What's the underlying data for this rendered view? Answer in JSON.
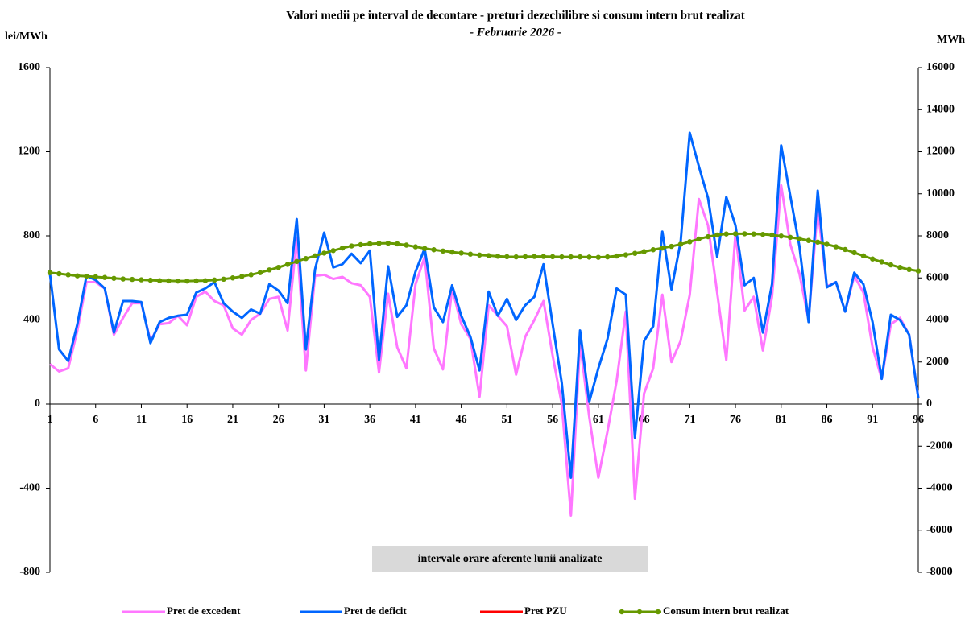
{
  "chart_data": {
    "type": "line",
    "title": "Valori medii pe interval de decontare - preturi dezechilibre si consum intern brut realizat",
    "subtitle": "- Februarie 2026 -",
    "ylabel": "lei/MWh",
    "y2label": "MWh",
    "annotation": "intervale orare aferente lunii analizate",
    "legend": "bottom",
    "x": [
      1,
      2,
      3,
      4,
      5,
      6,
      7,
      8,
      9,
      10,
      11,
      12,
      13,
      14,
      15,
      16,
      17,
      18,
      19,
      20,
      21,
      22,
      23,
      24,
      25,
      26,
      27,
      28,
      29,
      30,
      31,
      32,
      33,
      34,
      35,
      36,
      37,
      38,
      39,
      40,
      41,
      42,
      43,
      44,
      45,
      46,
      47,
      48,
      49,
      50,
      51,
      52,
      53,
      54,
      55,
      56,
      57,
      58,
      59,
      60,
      61,
      62,
      63,
      64,
      65,
      66,
      67,
      68,
      69,
      70,
      71,
      72,
      73,
      74,
      75,
      76,
      77,
      78,
      79,
      80,
      81,
      82,
      83,
      84,
      85,
      86,
      87,
      88,
      89,
      90,
      91,
      92,
      93,
      94,
      95,
      96
    ],
    "xlim": [
      1,
      96
    ],
    "xticks": [
      1,
      6,
      11,
      16,
      21,
      26,
      31,
      36,
      41,
      46,
      51,
      56,
      61,
      66,
      71,
      76,
      81,
      86,
      91,
      96
    ],
    "ylim": [
      -800,
      1600
    ],
    "yticks": [
      -800,
      -400,
      0,
      400,
      800,
      1200,
      1600
    ],
    "y2lim": [
      -8000,
      16000
    ],
    "y2ticks": [
      -8000,
      -6000,
      -4000,
      -2000,
      0,
      2000,
      4000,
      6000,
      8000,
      10000,
      12000,
      14000,
      16000
    ],
    "series": [
      {
        "name": "Pret de excedent",
        "color": "#ff77ff",
        "values": [
          190,
          155,
          170,
          350,
          580,
          580,
          550,
          330,
          410,
          480,
          480,
          300,
          380,
          385,
          420,
          375,
          510,
          535,
          490,
          470,
          360,
          330,
          400,
          430,
          500,
          510,
          350,
          790,
          160,
          610,
          615,
          595,
          605,
          575,
          565,
          510,
          150,
          525,
          270,
          170,
          570,
          700,
          265,
          165,
          550,
          380,
          310,
          35,
          470,
          420,
          370,
          140,
          320,
          400,
          490,
          230,
          0,
          -530,
          290,
          -60,
          -350,
          -130,
          110,
          440,
          -450,
          50,
          170,
          520,
          200,
          300,
          520,
          975,
          850,
          530,
          210,
          810,
          445,
          510,
          255,
          510,
          1040,
          760,
          620,
          400,
          930,
          560,
          580,
          440,
          610,
          530,
          270,
          120,
          380,
          410,
          330,
          30
        ]
      },
      {
        "name": "Pret de deficit",
        "color": "#0066ff",
        "values": [
          620,
          260,
          205,
          380,
          610,
          590,
          550,
          340,
          490,
          490,
          485,
          290,
          390,
          410,
          420,
          425,
          530,
          550,
          580,
          480,
          440,
          410,
          450,
          430,
          570,
          540,
          480,
          880,
          260,
          640,
          815,
          650,
          665,
          715,
          670,
          730,
          210,
          655,
          415,
          470,
          630,
          740,
          460,
          390,
          565,
          420,
          320,
          160,
          535,
          420,
          500,
          400,
          470,
          510,
          665,
          380,
          100,
          -350,
          350,
          10,
          170,
          310,
          550,
          520,
          -160,
          300,
          370,
          820,
          545,
          770,
          1290,
          1130,
          980,
          700,
          985,
          850,
          565,
          600,
          340,
          570,
          1230,
          990,
          750,
          390,
          1015,
          555,
          580,
          440,
          625,
          570,
          390,
          120,
          425,
          400,
          330,
          30
        ]
      },
      {
        "name": "Pret PZU",
        "color": "#ff0000",
        "values": [
          null,
          null,
          null,
          null,
          null,
          null,
          null,
          null,
          null,
          null,
          null,
          null,
          null,
          null,
          null,
          null,
          null,
          null,
          null,
          null,
          null,
          null,
          null,
          null,
          null,
          null,
          null,
          null,
          null,
          null,
          null,
          null,
          null,
          null,
          null,
          null,
          null,
          null,
          null,
          null,
          null,
          null,
          null,
          null,
          null,
          null,
          null,
          null,
          null,
          null,
          null,
          null,
          null,
          null,
          null,
          null,
          null,
          null,
          null,
          null,
          null,
          null,
          null,
          null,
          null,
          null,
          null,
          null,
          null,
          null,
          null,
          null,
          null,
          null,
          null,
          null,
          null,
          null,
          null,
          null,
          null,
          null,
          null,
          null,
          null,
          null,
          null,
          null,
          null,
          null,
          null,
          null,
          null,
          null,
          null,
          null
        ]
      },
      {
        "name": "Consum intern brut realizat",
        "color": "#669900",
        "axis": "y2",
        "marker": "circle",
        "values": [
          6250,
          6200,
          6150,
          6100,
          6080,
          6050,
          6020,
          5980,
          5950,
          5930,
          5910,
          5890,
          5870,
          5860,
          5850,
          5850,
          5860,
          5870,
          5900,
          5940,
          6000,
          6070,
          6150,
          6250,
          6380,
          6500,
          6640,
          6780,
          6920,
          7050,
          7180,
          7300,
          7420,
          7520,
          7580,
          7620,
          7640,
          7650,
          7620,
          7560,
          7480,
          7400,
          7340,
          7280,
          7230,
          7180,
          7130,
          7090,
          7060,
          7030,
          7010,
          7000,
          7010,
          7020,
          7020,
          7010,
          7000,
          7000,
          7000,
          6990,
          6980,
          7000,
          7040,
          7100,
          7170,
          7250,
          7340,
          7420,
          7500,
          7600,
          7720,
          7850,
          7960,
          8040,
          8090,
          8100,
          8100,
          8090,
          8070,
          8040,
          7990,
          7930,
          7860,
          7780,
          7700,
          7600,
          7480,
          7350,
          7200,
          7050,
          6900,
          6760,
          6620,
          6500,
          6400,
          6330
        ]
      }
    ]
  }
}
